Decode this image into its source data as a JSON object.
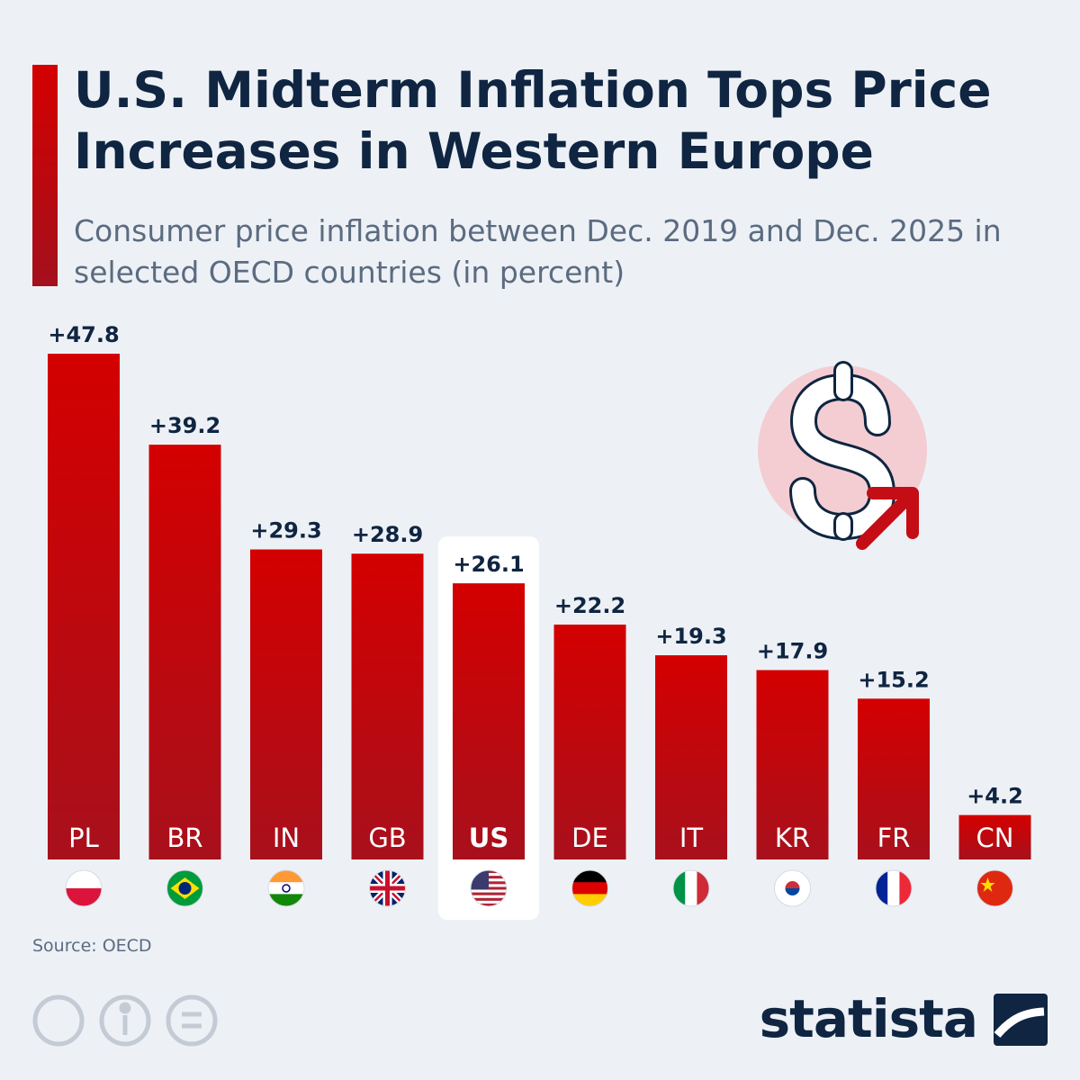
{
  "chart_data": {
    "type": "bar",
    "title": "U.S. Midterm Inflation Tops Price Increases in Western Europe",
    "subtitle": "Consumer price inflation between Dec. 2019 and Dec. 2025 in selected OECD countries (in percent)",
    "categories": [
      "PL",
      "BR",
      "IN",
      "GB",
      "US",
      "DE",
      "IT",
      "KR",
      "FR",
      "CN"
    ],
    "values": [
      47.8,
      39.2,
      29.3,
      28.9,
      26.1,
      22.2,
      19.3,
      17.9,
      15.2,
      4.2
    ],
    "value_labels": [
      "+47.8",
      "+39.2",
      "+29.3",
      "+28.9",
      "+26.1",
      "+22.2",
      "+19.3",
      "+17.9",
      "+15.2",
      "+4.2"
    ],
    "color": "#cc0000",
    "highlight": "US",
    "source": "Source: OECD",
    "logo": "statista"
  }
}
